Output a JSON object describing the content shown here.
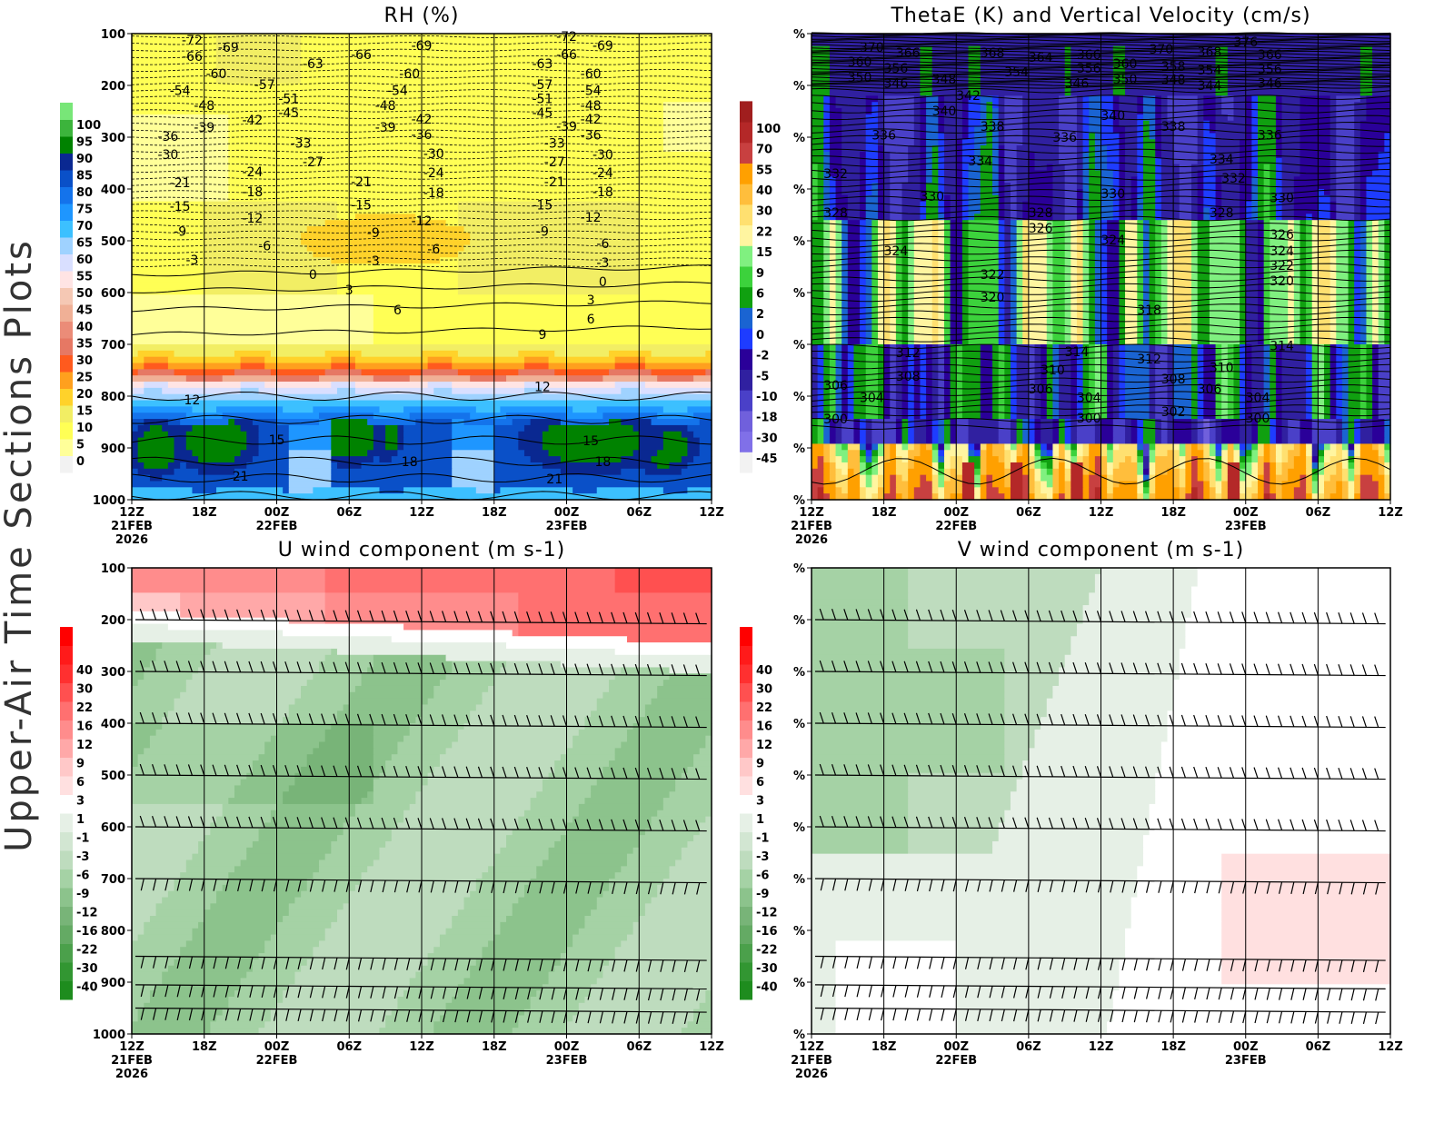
{
  "figure": {
    "side_title": "Upper-Air Time Sections Plots"
  },
  "chart_data": [
    {
      "type": "heatmap",
      "title": "RH (%)",
      "ylim": [
        1000,
        100
      ],
      "y_ticks": [
        "100",
        "200",
        "300",
        "400",
        "500",
        "600",
        "700",
        "800",
        "900",
        "1000"
      ],
      "x_ticks": [
        {
          "time": "12Z",
          "date": "21FEB",
          "year": "2026"
        },
        {
          "time": "18Z"
        },
        {
          "time": "00Z",
          "date": "22FEB"
        },
        {
          "time": "06Z"
        },
        {
          "time": "12Z"
        },
        {
          "time": "18Z"
        },
        {
          "time": "00Z",
          "date": "23FEB"
        },
        {
          "time": "06Z"
        },
        {
          "time": "12Z"
        }
      ],
      "colorbar": {
        "levels": [
          "0",
          "5",
          "10",
          "15",
          "20",
          "25",
          "30",
          "35",
          "40",
          "45",
          "50",
          "55",
          "60",
          "65",
          "70",
          "75",
          "80",
          "85",
          "90",
          "95",
          "100"
        ],
        "colors": [
          "#f2f2f2",
          "#ffff99",
          "#ffff55",
          "#f2ee64",
          "#ffd22a",
          "#ffa01e",
          "#ff5a1e",
          "#e67864",
          "#eb8c78",
          "#f0b096",
          "#f5c8b4",
          "#ffe4e4",
          "#d9dfff",
          "#9fd2ff",
          "#3cc0ff",
          "#1e96ff",
          "#1473eb",
          "#0a50c8",
          "#0a2891",
          "#008200",
          "#3cb43c",
          "#78e678"
        ]
      },
      "contour_labels": [
        [
          "-72",
          "21FEB 17Z",
          112
        ],
        [
          "-69",
          "21FEB 20Z",
          126
        ],
        [
          "-66",
          "21FEB 17Z",
          144
        ],
        [
          "-60",
          "21FEB 19Z",
          177
        ],
        [
          "-54",
          "21FEB 16Z",
          210
        ],
        [
          "-48",
          "21FEB 18Z",
          239
        ],
        [
          "-39",
          "21FEB 18Z",
          281
        ],
        [
          "-36",
          "21FEB 15Z",
          298
        ],
        [
          "-30",
          "21FEB 15Z",
          333
        ],
        [
          "-21",
          "21FEB 16Z",
          388
        ],
        [
          "-15",
          "21FEB 16Z",
          433
        ],
        [
          "-9",
          "21FEB 16Z",
          482
        ],
        [
          "-3",
          "21FEB 17Z",
          537
        ],
        [
          "-57",
          "21FEB 23Z",
          198
        ],
        [
          "-42",
          "21FEB 22Z",
          267
        ],
        [
          "-51",
          "22FEB 01Z",
          225
        ],
        [
          "-45",
          "22FEB 01Z",
          253
        ],
        [
          "-63",
          "22FEB 03Z",
          158
        ],
        [
          "-33",
          "22FEB 02Z",
          311
        ],
        [
          "-27",
          "22FEB 03Z",
          347
        ],
        [
          "-24",
          "21FEB 22Z",
          367
        ],
        [
          "-18",
          "21FEB 22Z",
          405
        ],
        [
          "-12",
          "21FEB 22Z",
          456
        ],
        [
          "-6",
          "21FEB 23Z",
          510
        ],
        [
          "-66",
          "22FEB 07Z",
          140
        ],
        [
          "-21",
          "22FEB 07Z",
          386
        ],
        [
          "-15",
          "22FEB 07Z",
          431
        ],
        [
          "-9",
          "22FEB 08Z",
          484
        ],
        [
          "-3",
          "22FEB 08Z",
          539
        ],
        [
          "-69",
          "22FEB 12Z",
          123
        ],
        [
          "-60",
          "22FEB 11Z",
          177
        ],
        [
          "-54",
          "22FEB 10Z",
          210
        ],
        [
          "-48",
          "22FEB 09Z",
          239
        ],
        [
          "-39",
          "22FEB 09Z",
          281
        ],
        [
          "-42",
          "22FEB 12Z",
          265
        ],
        [
          "-36",
          "22FEB 12Z",
          295
        ],
        [
          "-30",
          "22FEB 13Z",
          332
        ],
        [
          "-24",
          "22FEB 13Z",
          368
        ],
        [
          "-18",
          "22FEB 13Z",
          407
        ],
        [
          "-12",
          "22FEB 12Z",
          461
        ],
        [
          "-6",
          "22FEB 13Z",
          516
        ],
        [
          "-72",
          "23FEB 00Z",
          105
        ],
        [
          "-66",
          "23FEB 00Z",
          140
        ],
        [
          "-69",
          "23FEB 03Z",
          123
        ],
        [
          "-63",
          "22FEB 22Z",
          158
        ],
        [
          "-57",
          "22FEB 22Z",
          198
        ],
        [
          "-51",
          "22FEB 22Z",
          225
        ],
        [
          "-45",
          "22FEB 22Z",
          253
        ],
        [
          "-39",
          "23FEB 00Z",
          279
        ],
        [
          "-33",
          "22FEB 23Z",
          311
        ],
        [
          "-27",
          "22FEB 23Z",
          347
        ],
        [
          "-21",
          "22FEB 23Z",
          386
        ],
        [
          "-15",
          "22FEB 22Z",
          431
        ],
        [
          "-9",
          "22FEB 22Z",
          482
        ],
        [
          "-60",
          "23FEB 02Z",
          177
        ],
        [
          "-54",
          "23FEB 02Z",
          210
        ],
        [
          "-48",
          "23FEB 02Z",
          239
        ],
        [
          "-42",
          "23FEB 02Z",
          265
        ],
        [
          "-36",
          "23FEB 02Z",
          296
        ],
        [
          "-30",
          "23FEB 03Z",
          333
        ],
        [
          "-24",
          "23FEB 03Z",
          368
        ],
        [
          "-18",
          "23FEB 03Z",
          405
        ],
        [
          "-12",
          "23FEB 02Z",
          454
        ],
        [
          "-6",
          "23FEB 03Z",
          505
        ],
        [
          "-3",
          "23FEB 03Z",
          542
        ],
        [
          "0",
          "22FEB 03Z",
          565
        ],
        [
          "3",
          "22FEB 06Z",
          595
        ],
        [
          "6",
          "22FEB 10Z",
          633
        ],
        [
          "9",
          "22FEB 22Z",
          681
        ],
        [
          "0",
          "23FEB 03Z",
          579
        ],
        [
          "3",
          "23FEB 02Z",
          614
        ],
        [
          "6",
          "23FEB 02Z",
          651
        ],
        [
          "12",
          "21FEB 17Z",
          807
        ],
        [
          "12",
          "22FEB 22Z",
          782
        ],
        [
          "15",
          "22FEB 00Z",
          884
        ],
        [
          "18",
          "22FEB 11Z",
          926
        ],
        [
          "21",
          "21FEB 21Z",
          954
        ],
        [
          "15",
          "23FEB 02Z",
          886
        ],
        [
          "18",
          "23FEB 03Z",
          926
        ],
        [
          "21",
          "22FEB 23Z",
          960
        ]
      ]
    },
    {
      "type": "heatmap",
      "title": "ThetaE (K) and Vertical Velocity (cm/s)",
      "y_ticks": [
        "%",
        "%",
        "%",
        "%",
        "%",
        "%",
        "%",
        "%",
        "%",
        "%"
      ],
      "x_ticks": [
        {
          "time": "12Z",
          "date": "21FEB",
          "year": "2026"
        },
        {
          "time": "18Z"
        },
        {
          "time": "00Z",
          "date": "22FEB"
        },
        {
          "time": "06Z"
        },
        {
          "time": "12Z"
        },
        {
          "time": "18Z"
        },
        {
          "time": "00Z",
          "date": "23FEB"
        },
        {
          "time": "06Z"
        },
        {
          "time": "12Z"
        }
      ],
      "colorbar": {
        "levels": [
          "-45",
          "-30",
          "-18",
          "-10",
          "-5",
          "-2",
          "0",
          "2",
          "6",
          "9",
          "15",
          "22",
          "30",
          "40",
          "55",
          "70",
          "100"
        ],
        "colors": [
          "#f2f2f2",
          "#8070e8",
          "#7060dc",
          "#4a40c8",
          "#3020a0",
          "#2a0099",
          "#1e3cff",
          "#1a64d2",
          "#10a010",
          "#3cd23c",
          "#80f080",
          "#fff5a0",
          "#ffe070",
          "#ffbe3c",
          "#ffa000",
          "#c84040",
          "#b42828",
          "#a01e1e"
        ]
      },
      "contour_labels": [
        [
          "370",
          "21FEB 17Z",
          126
        ],
        [
          "366",
          "21FEB 20Z",
          137
        ],
        [
          "360",
          "21FEB 16Z",
          154
        ],
        [
          "356",
          "21FEB 19Z",
          167
        ],
        [
          "350",
          "21FEB 16Z",
          184
        ],
        [
          "346",
          "21FEB 19Z",
          196
        ],
        [
          "348",
          "21FEB 23Z",
          188
        ],
        [
          "368",
          "22FEB 03Z",
          137
        ],
        [
          "364",
          "22FEB 07Z",
          146
        ],
        [
          "354",
          "22FEB 05Z",
          174
        ],
        [
          "366",
          "22FEB 11Z",
          140
        ],
        [
          "356",
          "22FEB 11Z",
          167
        ],
        [
          "346",
          "22FEB 10Z",
          196
        ],
        [
          "360",
          "22FEB 14Z",
          158
        ],
        [
          "350",
          "22FEB 14Z",
          188
        ],
        [
          "370",
          "22FEB 17Z",
          130
        ],
        [
          "368",
          "22FEB 21Z",
          135
        ],
        [
          "358",
          "22FEB 18Z",
          163
        ],
        [
          "348",
          "22FEB 18Z",
          189
        ],
        [
          "354",
          "22FEB 21Z",
          170
        ],
        [
          "344",
          "22FEB 21Z",
          200
        ],
        [
          "376",
          "23FEB 00Z",
          116
        ],
        [
          "366",
          "23FEB 02Z",
          140
        ],
        [
          "356",
          "23FEB 02Z",
          168
        ],
        [
          "346",
          "23FEB 02Z",
          196
        ],
        [
          "342",
          "22FEB 01Z",
          219
        ],
        [
          "340",
          "21FEB 23Z",
          249
        ],
        [
          "340",
          "22FEB 13Z",
          258
        ],
        [
          "338",
          "22FEB 03Z",
          279
        ],
        [
          "338",
          "22FEB 18Z",
          279
        ],
        [
          "336",
          "21FEB 18Z",
          296
        ],
        [
          "336",
          "22FEB 09Z",
          300
        ],
        [
          "336",
          "23FEB 02Z",
          296
        ],
        [
          "334",
          "22FEB 02Z",
          346
        ],
        [
          "334",
          "22FEB 22Z",
          342
        ],
        [
          "332",
          "21FEB 14Z",
          370
        ],
        [
          "332",
          "22FEB 23Z",
          379
        ],
        [
          "330",
          "21FEB 22Z",
          414
        ],
        [
          "330",
          "22FEB 13Z",
          409
        ],
        [
          "330",
          "23FEB 03Z",
          417
        ],
        [
          "328",
          "21FEB 14Z",
          446
        ],
        [
          "328",
          "22FEB 07Z",
          446
        ],
        [
          "326",
          "22FEB 07Z",
          475
        ],
        [
          "328",
          "22FEB 22Z",
          446
        ],
        [
          "324",
          "21FEB 19Z",
          519
        ],
        [
          "324",
          "22FEB 13Z",
          498
        ],
        [
          "326",
          "23FEB 03Z",
          488
        ],
        [
          "324",
          "23FEB 03Z",
          519
        ],
        [
          "322",
          "22FEB 03Z",
          565
        ],
        [
          "322",
          "23FEB 03Z",
          547
        ],
        [
          "320",
          "22FEB 03Z",
          609
        ],
        [
          "320",
          "23FEB 03Z",
          577
        ],
        [
          "318",
          "22FEB 16Z",
          633
        ],
        [
          "314",
          "22FEB 10Z",
          714
        ],
        [
          "314",
          "23FEB 03Z",
          703
        ],
        [
          "312",
          "21FEB 20Z",
          716
        ],
        [
          "312",
          "22FEB 16Z",
          728
        ],
        [
          "310",
          "22FEB 08Z",
          749
        ],
        [
          "310",
          "22FEB 22Z",
          745
        ],
        [
          "308",
          "21FEB 20Z",
          761
        ],
        [
          "308",
          "22FEB 18Z",
          767
        ],
        [
          "306",
          "21FEB 14Z",
          779
        ],
        [
          "306",
          "22FEB 07Z",
          786
        ],
        [
          "306",
          "22FEB 21Z",
          786
        ],
        [
          "304",
          "21FEB 17Z",
          803
        ],
        [
          "304",
          "22FEB 11Z",
          803
        ],
        [
          "304",
          "23FEB 01Z",
          803
        ],
        [
          "302",
          "22FEB 18Z",
          830
        ],
        [
          "300",
          "21FEB 14Z",
          844
        ],
        [
          "300",
          "22FEB 11Z",
          842
        ],
        [
          "300",
          "23FEB 01Z",
          842
        ]
      ]
    },
    {
      "type": "heatmap",
      "title": "U wind component (m s-1)",
      "ylim": [
        1000,
        100
      ],
      "y_ticks": [
        "100",
        "200",
        "300",
        "400",
        "500",
        "600",
        "700",
        "800",
        "900",
        "1000"
      ],
      "x_ticks": [
        {
          "time": "12Z",
          "date": "21FEB",
          "year": "2026"
        },
        {
          "time": "18Z"
        },
        {
          "time": "00Z",
          "date": "22FEB"
        },
        {
          "time": "06Z"
        },
        {
          "time": "12Z"
        },
        {
          "time": "18Z"
        },
        {
          "time": "00Z",
          "date": "23FEB"
        },
        {
          "time": "06Z"
        },
        {
          "time": "12Z"
        }
      ],
      "colorbar": {
        "levels": [
          "-40",
          "-30",
          "-22",
          "-16",
          "-12",
          "-9",
          "-6",
          "-3",
          "-1",
          "1",
          "3",
          "6",
          "9",
          "12",
          "16",
          "22",
          "30",
          "40"
        ],
        "colors": [
          "#1e8c1e",
          "#329632",
          "#4ba04b",
          "#64aa64",
          "#78b478",
          "#8cc38c",
          "#a5d2a5",
          "#bedcbe",
          "#d2e6d2",
          "#e6f0e6",
          "#ffffff",
          "#ffe0e0",
          "#ffc8c8",
          "#ffa8a8",
          "#ff8c8c",
          "#ff7070",
          "#ff5050",
          "#ff3030",
          "#ff1a1a",
          "#ff0000"
        ]
      },
      "wind_barb_levels": [
        200,
        300,
        400,
        500,
        600,
        700,
        850,
        905,
        950
      ]
    },
    {
      "type": "heatmap",
      "title": "V wind component (m s-1)",
      "y_ticks": [
        "%",
        "%",
        "%",
        "%",
        "%",
        "%",
        "%",
        "%",
        "%",
        "%"
      ],
      "x_ticks": [
        {
          "time": "12Z",
          "date": "21FEB",
          "year": "2026"
        },
        {
          "time": "18Z"
        },
        {
          "time": "00Z",
          "date": "22FEB"
        },
        {
          "time": "06Z"
        },
        {
          "time": "12Z"
        },
        {
          "time": "18Z"
        },
        {
          "time": "00Z",
          "date": "23FEB"
        },
        {
          "time": "06Z"
        },
        {
          "time": "12Z"
        }
      ],
      "colorbar": {
        "levels": [
          "-40",
          "-30",
          "-22",
          "-16",
          "-12",
          "-9",
          "-6",
          "-3",
          "-1",
          "1",
          "3",
          "6",
          "9",
          "12",
          "16",
          "22",
          "30",
          "40"
        ],
        "colors": [
          "#1e8c1e",
          "#329632",
          "#4ba04b",
          "#64aa64",
          "#78b478",
          "#8cc38c",
          "#a5d2a5",
          "#bedcbe",
          "#d2e6d2",
          "#e6f0e6",
          "#ffffff",
          "#ffe0e0",
          "#ffc8c8",
          "#ffa8a8",
          "#ff8c8c",
          "#ff7070",
          "#ff5050",
          "#ff3030",
          "#ff1a1a",
          "#ff0000"
        ]
      },
      "wind_barb_levels": [
        200,
        300,
        400,
        500,
        600,
        700,
        850,
        905,
        950
      ]
    }
  ]
}
